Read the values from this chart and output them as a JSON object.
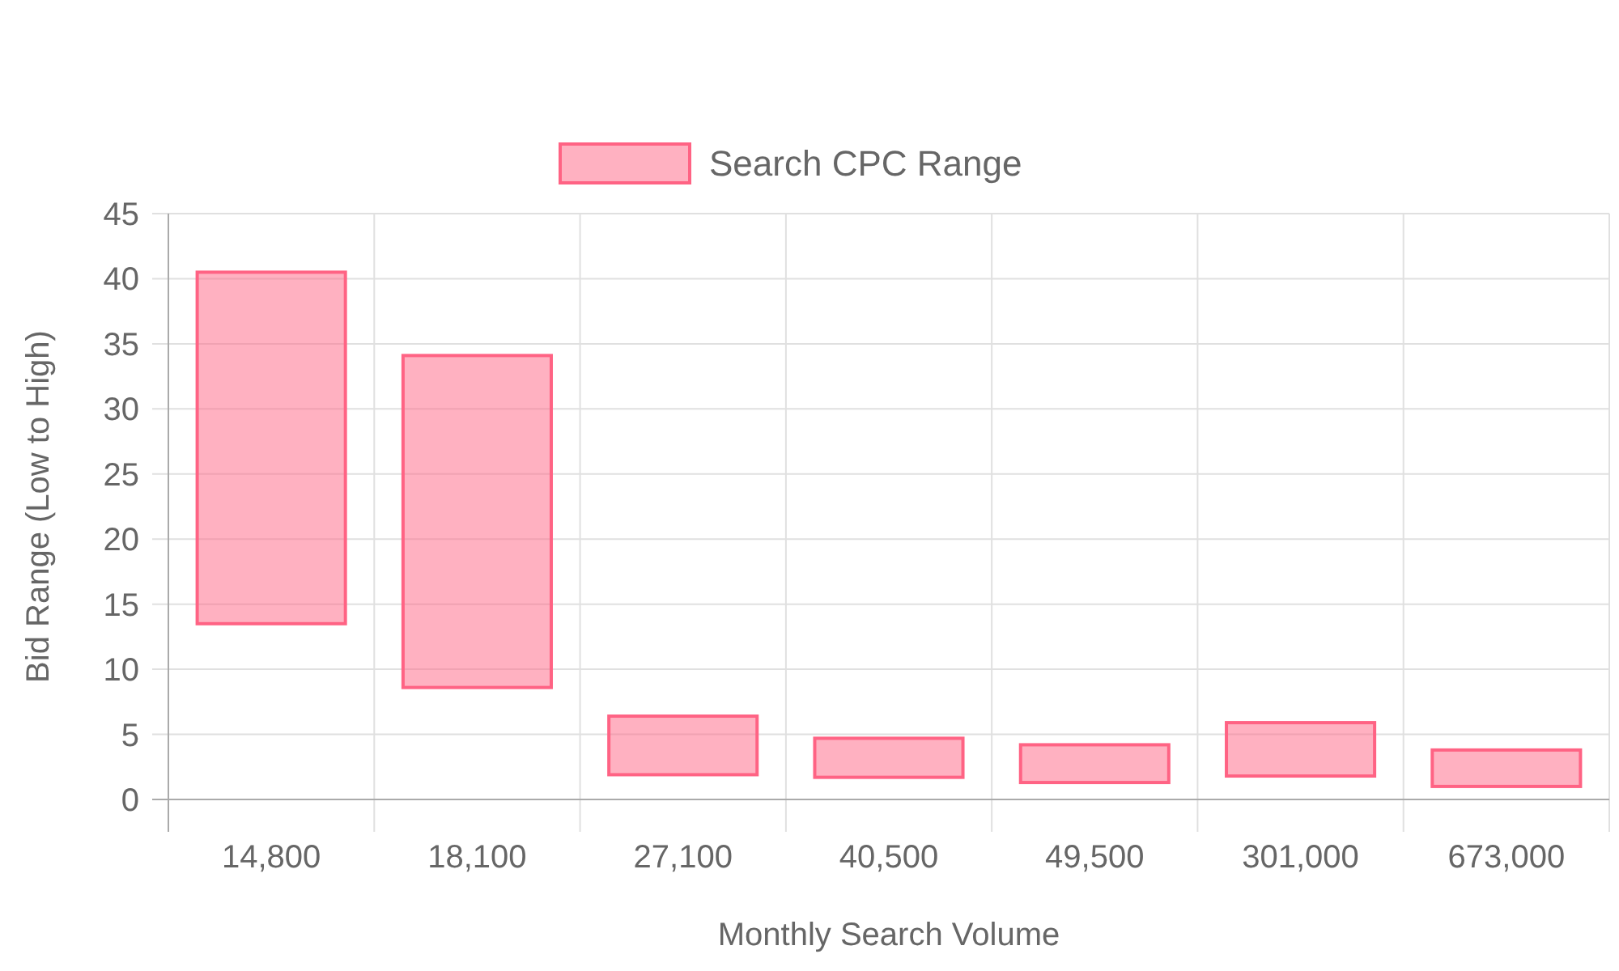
{
  "chart_data": {
    "type": "bar",
    "xlabel": "Monthly Search Volume",
    "ylabel": "Bid Range (Low to High)",
    "categories": [
      "14,800",
      "18,100",
      "27,100",
      "40,500",
      "49,500",
      "301,000",
      "673,000"
    ],
    "series": [
      {
        "name": "Search CPC Range",
        "color": "#ff6384",
        "values": [
          27,
          25.5,
          4.5,
          3.0,
          2.9,
          4.1,
          2.8
        ],
        "base": [
          13.5,
          8.6,
          1.9,
          1.7,
          1.3,
          1.8,
          1.0
        ]
      }
    ],
    "ylim": [
      0,
      45
    ],
    "yticks": [
      0,
      5,
      10,
      15,
      20,
      25,
      30,
      35,
      40,
      45
    ],
    "grid": true,
    "legend": "top"
  }
}
